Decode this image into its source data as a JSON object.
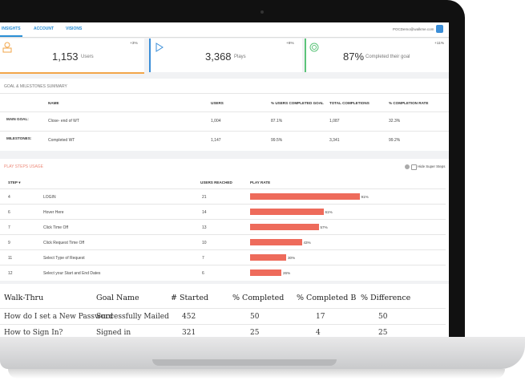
{
  "nav": {
    "tabs": [
      "INSIGHTS",
      "ACCOUNT",
      "VISIONS"
    ],
    "user": "POCDemo@walkme.com"
  },
  "stats": [
    {
      "value": "1,153",
      "label": "Users",
      "change": "+3%"
    },
    {
      "value": "3,368",
      "label": "Plays",
      "change": "+8%"
    },
    {
      "value": "87%",
      "label": "Completed their goal",
      "change": "+11%"
    }
  ],
  "goals": {
    "title": "GOAL & MILESTONES SUMMARY",
    "columns": [
      "NAME",
      "USERS",
      "% USERS COMPLETED GOAL",
      "TOTAL COMPLETIONS",
      "% COMPLETION RATE"
    ],
    "rows": [
      {
        "label": "MAIN GOAL:",
        "cells": [
          "Close- end of WT",
          "1,004",
          "87.1%",
          "1,087",
          "32.3%"
        ]
      },
      {
        "label": "MILESTONES:",
        "cells": [
          "Completed WT",
          "1,147",
          "99.5%",
          "3,341",
          "99.2%"
        ]
      }
    ]
  },
  "steps": {
    "title": "PLAY STEPS USAGE",
    "toggle": "Hide Super Steps",
    "columns": [
      "STEP ▾",
      "USERS REACHED",
      "PLAY RATE"
    ],
    "rows": [
      {
        "step": 4,
        "name": "LOGIN",
        "users": 21,
        "rate": {
          "value": 91,
          "label": "91%"
        }
      },
      {
        "step": 6,
        "name": "Hover Here",
        "users": 14,
        "rate": {
          "value": 61,
          "label": "61%"
        }
      },
      {
        "step": 7,
        "name": "Click Time Off",
        "users": 13,
        "rate": {
          "value": 57,
          "label": "57%"
        }
      },
      {
        "step": 9,
        "name": "Click Request Time Off",
        "users": 10,
        "rate": {
          "value": 43,
          "label": "43%"
        }
      },
      {
        "step": 11,
        "name": "Select Type of Request",
        "users": 7,
        "rate": {
          "value": 30,
          "label": "30%"
        }
      },
      {
        "step": 12,
        "name": "Select your Start and End Dates",
        "users": 6,
        "rate": {
          "value": 26,
          "label": "26%"
        }
      }
    ]
  },
  "walkthru": {
    "columns": [
      "Walk-Thru",
      "Goal Name",
      "# Started",
      "% Completed",
      "% Completed B",
      "% Difference"
    ],
    "rows": [
      [
        "How do I set a New Password",
        "Successfully Mailed",
        452,
        50,
        17,
        50
      ],
      [
        "How to Sign In?",
        "Signed in",
        321,
        25,
        4,
        25
      ]
    ]
  }
}
